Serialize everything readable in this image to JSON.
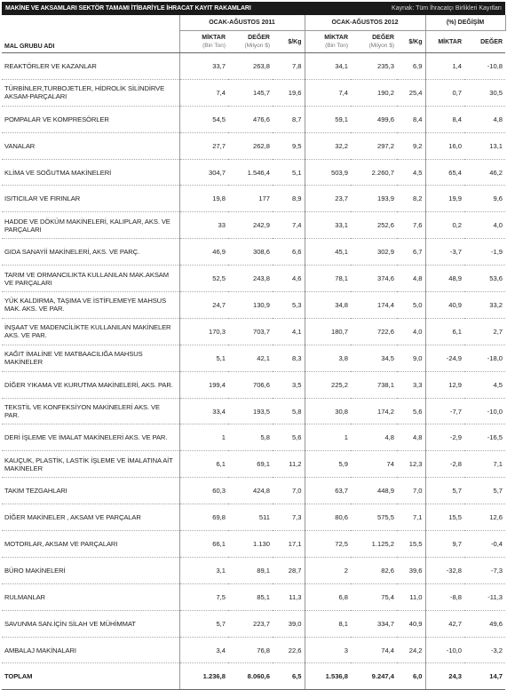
{
  "header": {
    "title": "MAKİNE VE AKSAMLARI SEKTÖR TAMAMI İTİBARİYLE İHRACAT KAYIT RAKAMLARI",
    "source": "Kaynak: Tüm İhracatçı Birlikleri Kayıtları"
  },
  "table": {
    "groups": [
      "OCAK-AĞUSTOS 2011",
      "OCAK-AĞUSTOS 2012",
      "(%) DEĞİŞİM"
    ],
    "columns": [
      {
        "label": "MAL GRUBU ADI"
      },
      {
        "label": "MİKTAR",
        "unit": "(Bin Ton)"
      },
      {
        "label": "DEĞER",
        "unit": "(Milyon $)"
      },
      {
        "label": "$/Kg"
      },
      {
        "label": "MİKTAR",
        "unit": "(Bin Ton)"
      },
      {
        "label": "DEĞER",
        "unit": "(Milyon $)"
      },
      {
        "label": "$/Kg"
      },
      {
        "label": "MİKTAR"
      },
      {
        "label": "DEĞER"
      }
    ],
    "rows": [
      [
        "REAKTÖRLER VE KAZANLAR",
        "33,7",
        "263,8",
        "7,8",
        "34,1",
        "235,3",
        "6,9",
        "1,4",
        "-10,8"
      ],
      [
        "TÜRBİNLER,TURBOJETLER, HİDROLİK SİLİNDİRVE AKSAM-PARÇALARI",
        "7,4",
        "145,7",
        "19,6",
        "7,4",
        "190,2",
        "25,4",
        "0,7",
        "30,5"
      ],
      [
        "POMPALAR VE KOMPRESÖRLER",
        "54,5",
        "476,6",
        "8,7",
        "59,1",
        "499,6",
        "8,4",
        "8,4",
        "4,8"
      ],
      [
        "VANALAR",
        "27,7",
        "262,8",
        "9,5",
        "32,2",
        "297,2",
        "9,2",
        "16,0",
        "13,1"
      ],
      [
        "KLİMA VE SOĞUTMA MAKİNELERİ",
        "304,7",
        "1.546,4",
        "5,1",
        "503,9",
        "2.260,7",
        "4,5",
        "65,4",
        "46,2"
      ],
      [
        "ISITICILAR VE FIRINLAR",
        "19,8",
        "177",
        "8,9",
        "23,7",
        "193,9",
        "8,2",
        "19,9",
        "9,6"
      ],
      [
        "HADDE VE DÖKÜM MAKİNELERİ, KALIPLAR, AKS. VE PARÇALARI",
        "33",
        "242,9",
        "7,4",
        "33,1",
        "252,6",
        "7,6",
        "0,2",
        "4,0"
      ],
      [
        "GIDA SANAYİİ MAKİNELERİ, AKS. VE PARÇ.",
        "46,9",
        "308,6",
        "6,6",
        "45,1",
        "302,9",
        "6,7",
        "-3,7",
        "-1,9"
      ],
      [
        "TARIM VE ORMANCILIKTA KULLANILAN MAK.AKSAM VE PARÇALARI",
        "52,5",
        "243,8",
        "4,6",
        "78,1",
        "374,6",
        "4,8",
        "48,9",
        "53,6"
      ],
      [
        "YÜK KALDIRMA, TAŞIMA VE İSTİFLEMEYE MAHSUS MAK. AKS. VE PAR.",
        "24,7",
        "130,9",
        "5,3",
        "34,8",
        "174,4",
        "5,0",
        "40,9",
        "33,2"
      ],
      [
        "İNŞAAT VE MADENCİLİKTE KULLANILAN MAKİNELER AKS. VE PAR.",
        "170,3",
        "703,7",
        "4,1",
        "180,7",
        "722,6",
        "4,0",
        "6,1",
        "2,7"
      ],
      [
        "KAĞIT İMALİNE VE MATBAACILIĞA MAHSUS MAKİNELER",
        "5,1",
        "42,1",
        "8,3",
        "3,8",
        "34,5",
        "9,0",
        "-24,9",
        "-18,0"
      ],
      [
        "DİĞER YIKAMA VE KURUTMA MAKİNELERİ, AKS. PAR.",
        "199,4",
        "706,6",
        "3,5",
        "225,2",
        "738,1",
        "3,3",
        "12,9",
        "4,5"
      ],
      [
        "TEKSTİL VE KONFEKSİYON MAKİNELERİ AKS. VE PAR.",
        "33,4",
        "193,5",
        "5,8",
        "30,8",
        "174,2",
        "5,6",
        "-7,7",
        "-10,0"
      ],
      [
        "DERİ İŞLEME VE İMALAT MAKİNELERİ AKS. VE PAR.",
        "1",
        "5,8",
        "5,6",
        "1",
        "4,8",
        "4,8",
        "-2,9",
        "-16,5"
      ],
      [
        "KAUÇUK, PLASTİK, LASTİK İŞLEME VE İMALATINA AİT MAKİNELER",
        "6,1",
        "69,1",
        "11,2",
        "5,9",
        "74",
        "12,3",
        "-2,8",
        "7,1"
      ],
      [
        "TAKIM TEZGAHLARI",
        "60,3",
        "424,8",
        "7,0",
        "63,7",
        "448,9",
        "7,0",
        "5,7",
        "5,7"
      ],
      [
        "DİĞER MAKİNELER , AKSAM VE PARÇALAR",
        "69,8",
        "511",
        "7,3",
        "80,6",
        "575,5",
        "7,1",
        "15,5",
        "12,6"
      ],
      [
        "MOTORLAR, AKSAM VE PARÇALARI",
        "66,1",
        "1.130",
        "17,1",
        "72,5",
        "1.125,2",
        "15,5",
        "9,7",
        "-0,4"
      ],
      [
        "BÜRO MAKİNELERİ",
        "3,1",
        "89,1",
        "28,7",
        "2",
        "82,6",
        "39,6",
        "-32,8",
        "-7,3"
      ],
      [
        "RULMANLAR",
        "7,5",
        "85,1",
        "11,3",
        "6,8",
        "75,4",
        "11,0",
        "-8,8",
        "-11,3"
      ],
      [
        "SAVUNMA SAN.İÇİN SİLAH VE MÜHİMMAT",
        "5,7",
        "223,7",
        "39,0",
        "8,1",
        "334,7",
        "40,9",
        "42,7",
        "49,6"
      ],
      [
        "AMBALAJ MAKİNALARI",
        "3,4",
        "76,8",
        "22,6",
        "3",
        "74,4",
        "24,2",
        "-10,0",
        "-3,2"
      ]
    ],
    "total": [
      "TOPLAM",
      "1.236,8",
      "8.060,6",
      "6,5",
      "1.536,8",
      "9.247,4",
      "6,0",
      "24,3",
      "14,7"
    ]
  }
}
